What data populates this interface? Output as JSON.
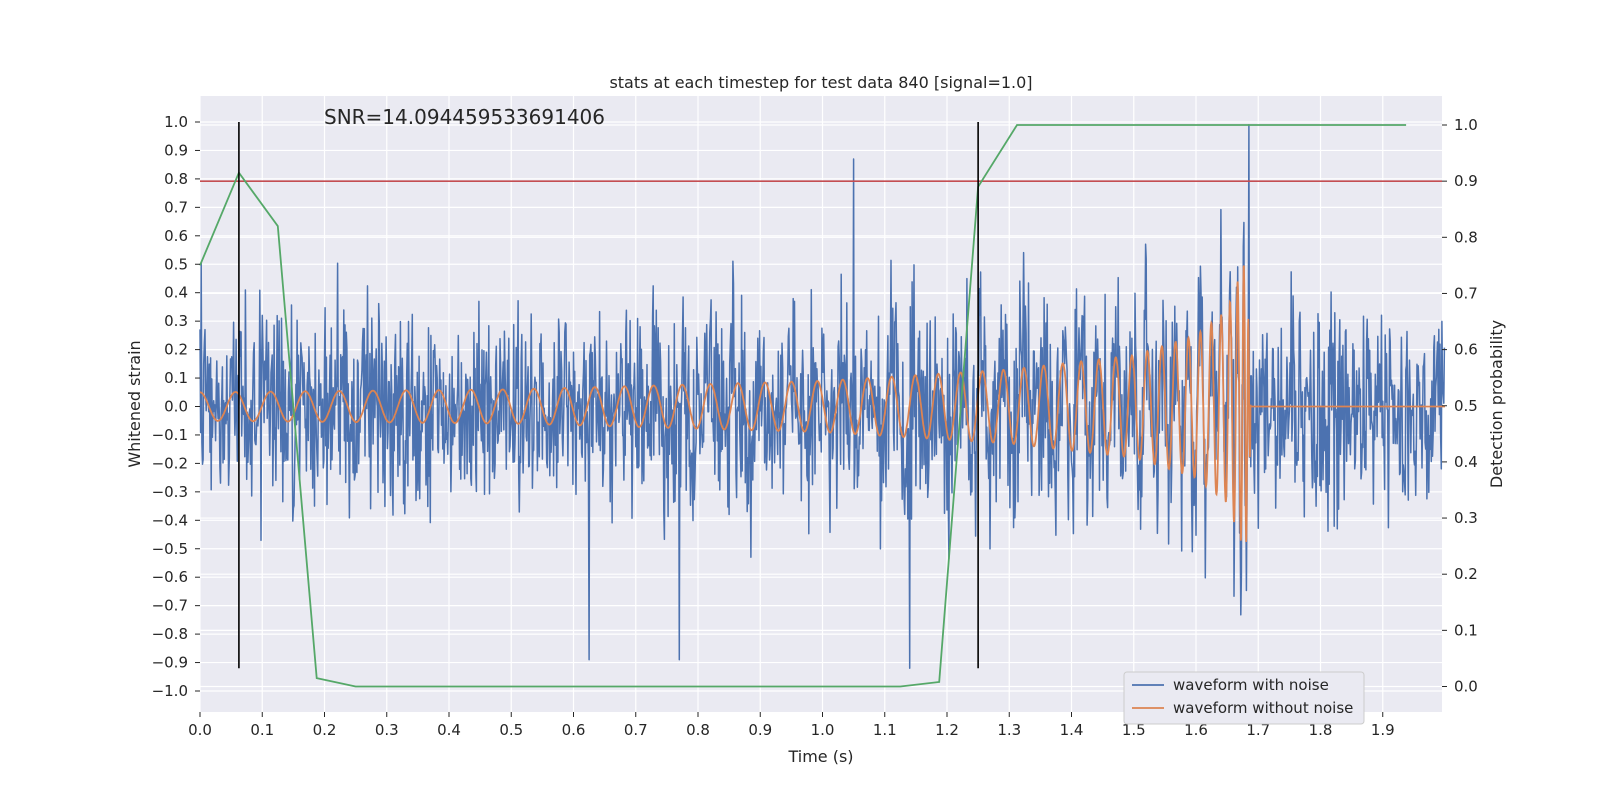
{
  "chart_data": {
    "type": "line",
    "title": "stats at each timestep for test data 840 [signal=1.0]",
    "annotation": "SNR=14.094459533691406",
    "xlabel": "Time (s)",
    "ylabel_left": "Whitened strain",
    "ylabel_right": "Detection probability",
    "xlim": [
      0.0,
      2.0
    ],
    "ylim_left": [
      -1.05,
      1.1
    ],
    "ylim_right": [
      -0.04,
      1.04
    ],
    "x_ticks": [
      "0.0",
      "0.1",
      "0.2",
      "0.3",
      "0.4",
      "0.5",
      "0.6",
      "0.7",
      "0.8",
      "0.9",
      "1.0",
      "1.1",
      "1.2",
      "1.3",
      "1.4",
      "1.5",
      "1.6",
      "1.7",
      "1.8",
      "1.9"
    ],
    "y_ticks_left": [
      "1.0",
      "0.9",
      "0.8",
      "0.7",
      "0.6",
      "0.5",
      "0.4",
      "0.3",
      "0.2",
      "0.1",
      "0.0",
      "−0.1",
      "−0.2",
      "−0.3",
      "−0.4",
      "−0.5",
      "−0.6",
      "−0.7",
      "−0.8",
      "−0.9",
      "−1.0"
    ],
    "y_ticks_right": [
      "1.0",
      "0.9",
      "0.8",
      "0.7",
      "0.6",
      "0.5",
      "0.4",
      "0.3",
      "0.2",
      "0.1",
      "0.0"
    ],
    "grid": true,
    "legend_position": "bottom-right",
    "series": [
      {
        "name": "waveform with noise",
        "axis": "left",
        "color": "#4c72b0",
        "description": "dense noisy whitened strain, amplitude roughly within ±0.6 with spikes to ±0.9",
        "notable_peaks": [
          [
            1.05,
            0.87
          ],
          [
            1.685,
            0.99
          ],
          [
            0.625,
            -0.89
          ],
          [
            0.77,
            -0.89
          ],
          [
            1.14,
            -0.92
          ]
        ]
      },
      {
        "name": "waveform without noise",
        "axis": "left",
        "color": "#dd8452",
        "description": "chirp signal, amplitude ~0.05 growing to ~0.52 at merger near t=1.69 s, then flat at 0",
        "envelope": [
          [
            0.0,
            0.05
          ],
          [
            0.5,
            0.06
          ],
          [
            1.0,
            0.09
          ],
          [
            1.3,
            0.13
          ],
          [
            1.5,
            0.18
          ],
          [
            1.6,
            0.25
          ],
          [
            1.65,
            0.34
          ],
          [
            1.68,
            0.52
          ],
          [
            1.69,
            0.0
          ]
        ]
      },
      {
        "name": "detection probability",
        "axis": "right",
        "color": "#55a868",
        "x": [
          0.0,
          0.0625,
          0.125,
          0.1875,
          0.25,
          0.3125,
          0.375,
          0.4375,
          0.5,
          0.5625,
          0.625,
          0.6875,
          0.75,
          0.8125,
          0.875,
          0.9375,
          1.0,
          1.0625,
          1.125,
          1.1875,
          1.25,
          1.3125,
          1.375,
          1.4375,
          1.5,
          1.5625,
          1.625,
          1.6875,
          1.75,
          1.8125,
          1.875,
          1.9375
        ],
        "values": [
          0.75,
          0.915,
          0.82,
          0.015,
          0.0,
          0.0,
          0.0,
          0.0,
          0.0,
          0.0,
          0.0,
          0.0,
          0.0,
          0.0,
          0.0,
          0.0,
          0.0,
          0.0,
          0.0,
          0.008,
          0.89,
          1.0,
          1.0,
          1.0,
          1.0,
          1.0,
          1.0,
          1.0,
          1.0,
          1.0,
          1.0,
          1.0
        ]
      }
    ],
    "threshold": {
      "axis": "right",
      "value": 0.9,
      "color": "#c44e52"
    },
    "markers": {
      "x": [
        0.0625,
        1.25
      ],
      "range_left": [
        -0.92,
        1.0
      ],
      "color": "#000000"
    }
  }
}
